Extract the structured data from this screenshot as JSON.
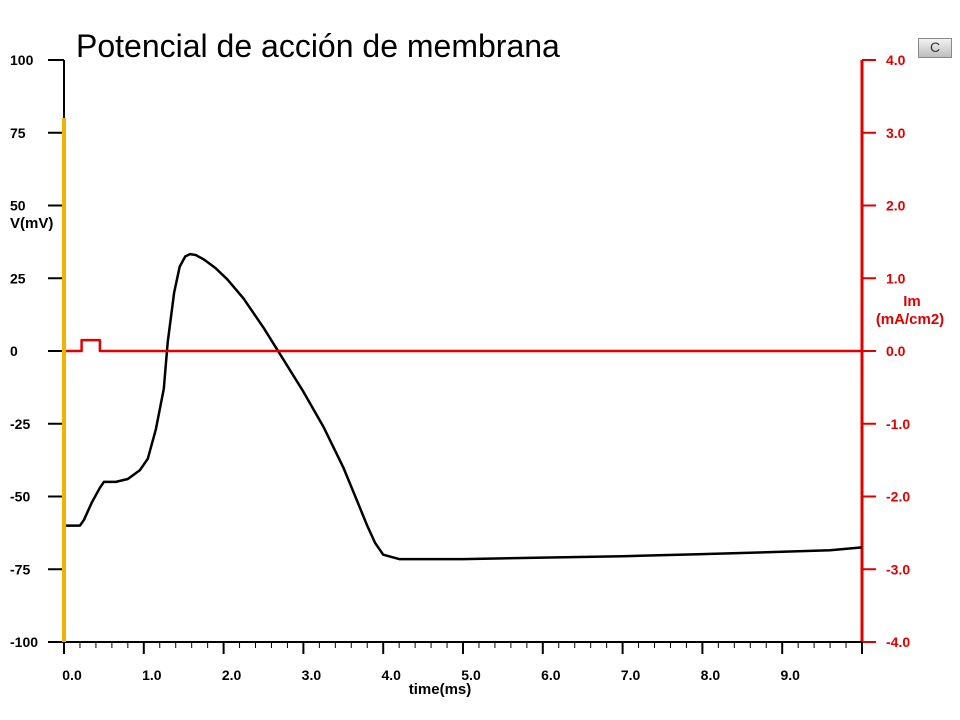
{
  "chart_data": {
    "type": "line",
    "title": "Potencial de acción de membrana",
    "xlabel": "time(ms)",
    "ylabel_left": "V(mV)",
    "ylabel_right_line1": "Im",
    "ylabel_right_line2": "(mA/cm2)",
    "xlim": [
      0,
      10
    ],
    "ylim_left": [
      -100,
      100
    ],
    "ylim_right": [
      -4,
      4
    ],
    "x_ticks": [
      "0.0",
      "1.0",
      "2.0",
      "3.0",
      "4.0",
      "5.0",
      "6.0",
      "7.0",
      "8.0",
      "9.0"
    ],
    "y_left_ticks": [
      "100",
      "75",
      "50",
      "25",
      "0",
      "-25",
      "-50",
      "-75",
      "-100"
    ],
    "y_right_ticks": [
      "4.0",
      "3.0",
      "2.0",
      "1.0",
      "0.0",
      "-1.0",
      "-2.0",
      "-3.0",
      "-4.0"
    ],
    "grid": false,
    "series": [
      {
        "axis": "left",
        "color": "#000000",
        "x": [
          0.0,
          0.2,
          0.25,
          0.35,
          0.45,
          0.5,
          0.65,
          0.8,
          0.95,
          1.05,
          1.15,
          1.25,
          1.3,
          1.38,
          1.45,
          1.52,
          1.58,
          1.65,
          1.75,
          1.9,
          2.05,
          2.25,
          2.5,
          2.75,
          3.0,
          3.25,
          3.5,
          3.65,
          3.8,
          3.9,
          4.0,
          4.2,
          4.5,
          5.0,
          6.0,
          7.0,
          8.0,
          9.0,
          9.6,
          10.0
        ],
        "values": [
          -60,
          -60,
          -58,
          -52,
          -47,
          -45,
          -45,
          -44,
          -41,
          -37,
          -27,
          -13,
          3,
          20,
          29,
          32.5,
          33.3,
          33,
          31.5,
          28.5,
          24.5,
          18,
          8,
          -3,
          -14,
          -26,
          -40,
          -50,
          -60,
          -66,
          -70,
          -71.5,
          -71.5,
          -71.5,
          -71,
          -70.5,
          -69.8,
          -69,
          -68.5,
          -67.5
        ]
      },
      {
        "axis": "right",
        "color": "#e00000",
        "x": [
          0.0,
          0.22,
          0.22,
          0.45,
          0.45,
          10.0
        ],
        "values": [
          0,
          0,
          0.15,
          0.15,
          0,
          0
        ]
      }
    ],
    "markers": [
      {
        "x": 0.0,
        "color": "#f0b400"
      }
    ]
  },
  "ui": {
    "corner_button_label": "C"
  }
}
